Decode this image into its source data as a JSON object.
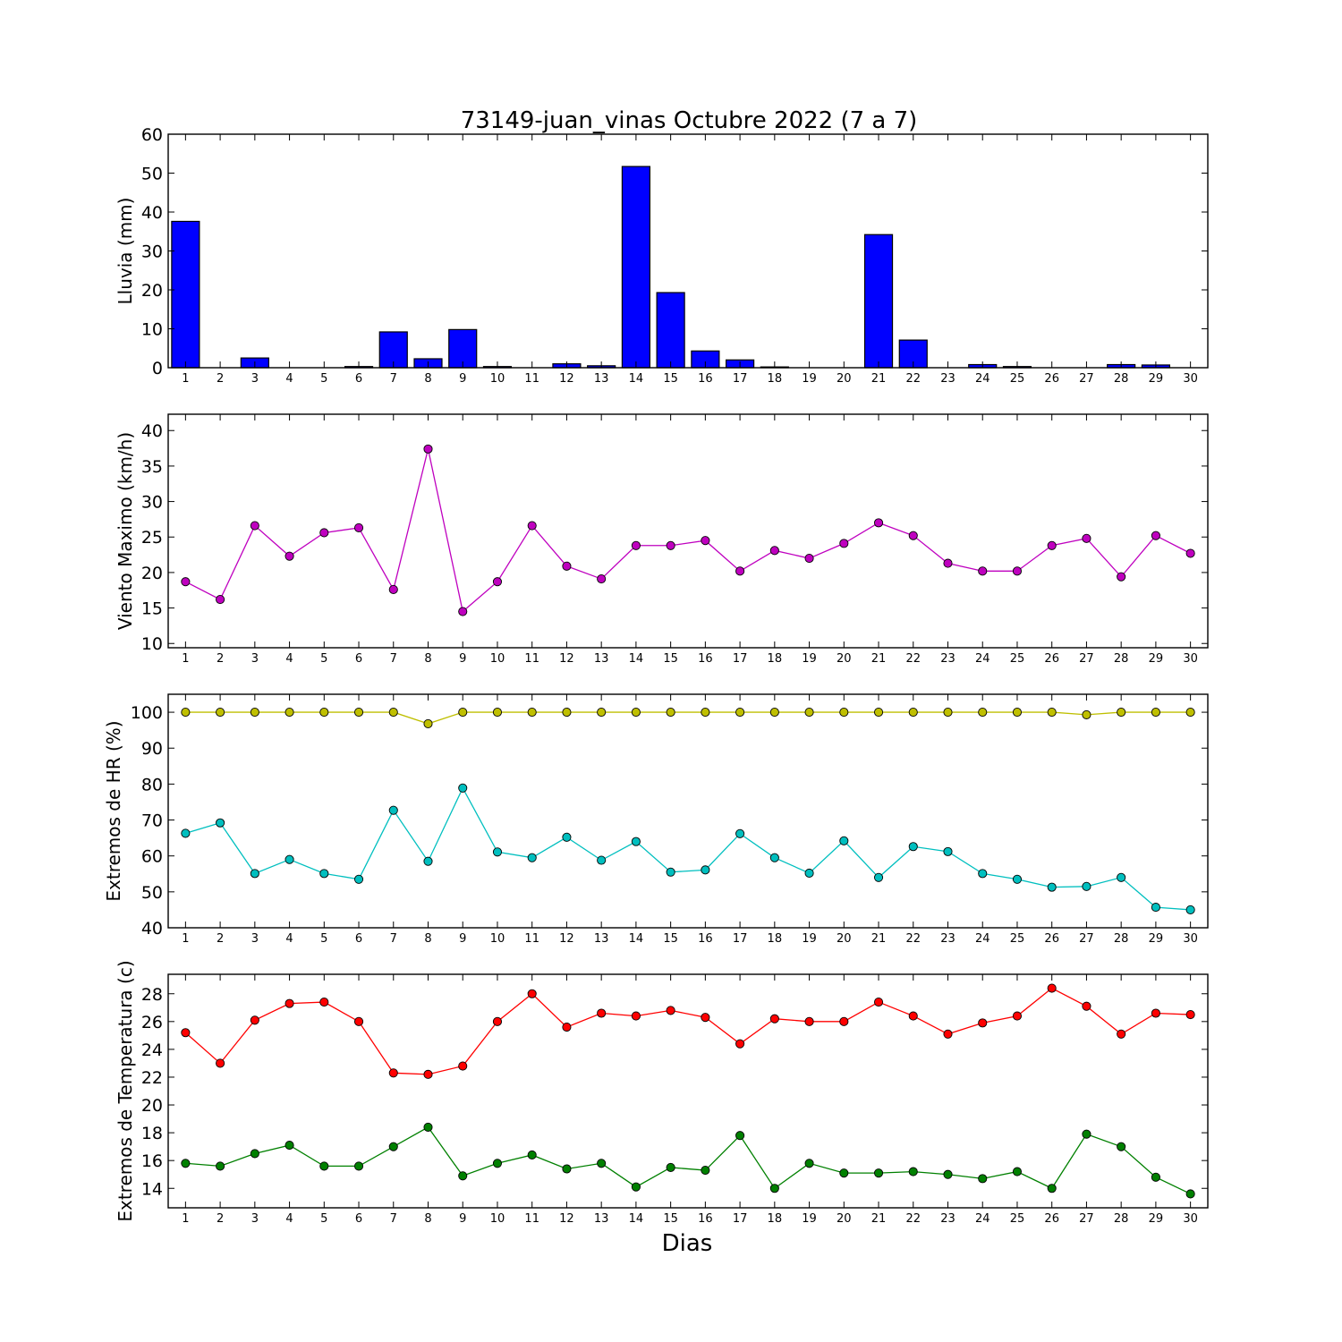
{
  "figure": {
    "title": "73149-juan_vinas Octubre 2022  (7 a 7)",
    "xlabel": "Dias"
  },
  "chart_data": [
    {
      "type": "bar",
      "ylabel": "Lluvia (mm)",
      "ylim": [
        0,
        60
      ],
      "yticks": [
        0,
        10,
        20,
        30,
        40,
        50,
        60
      ],
      "categories": [
        1,
        2,
        3,
        4,
        5,
        6,
        7,
        8,
        9,
        10,
        11,
        12,
        13,
        14,
        15,
        16,
        17,
        18,
        19,
        20,
        21,
        22,
        23,
        24,
        25,
        26,
        27,
        28,
        29,
        30
      ],
      "series": [
        {
          "color": "#0000ff",
          "values": [
            37.6,
            0,
            2.5,
            0,
            0,
            0.3,
            9.2,
            2.3,
            9.8,
            0.3,
            0,
            1.0,
            0.5,
            51.7,
            19.3,
            4.3,
            2.0,
            0.2,
            0,
            0,
            34.2,
            7.1,
            0,
            0.8,
            0.3,
            0,
            0,
            0.8,
            0.7,
            0
          ]
        }
      ]
    },
    {
      "type": "line",
      "ylabel": "Viento Maximo (km/h)",
      "ylim": [
        9.4,
        42.3
      ],
      "yticks": [
        10,
        15,
        20,
        25,
        30,
        35,
        40
      ],
      "x": [
        1,
        2,
        3,
        4,
        5,
        6,
        7,
        8,
        9,
        10,
        11,
        12,
        13,
        14,
        15,
        16,
        17,
        18,
        19,
        20,
        21,
        22,
        23,
        24,
        25,
        26,
        27,
        28,
        29,
        30
      ],
      "series": [
        {
          "color": "#bf00bf",
          "values": [
            18.7,
            16.2,
            26.6,
            22.3,
            25.6,
            26.3,
            17.6,
            37.4,
            14.5,
            18.7,
            26.6,
            20.9,
            19.1,
            23.8,
            23.8,
            24.5,
            20.2,
            23.1,
            22.0,
            24.1,
            27.0,
            25.2,
            21.3,
            20.2,
            20.2,
            23.8,
            24.8,
            19.4,
            25.2,
            22.7
          ]
        }
      ]
    },
    {
      "type": "line",
      "ylabel": "Extremos de HR (%)",
      "ylim": [
        40,
        105
      ],
      "yticks": [
        40,
        50,
        60,
        70,
        80,
        90,
        100
      ],
      "x": [
        1,
        2,
        3,
        4,
        5,
        6,
        7,
        8,
        9,
        10,
        11,
        12,
        13,
        14,
        15,
        16,
        17,
        18,
        19,
        20,
        21,
        22,
        23,
        24,
        25,
        26,
        27,
        28,
        29,
        30
      ],
      "series": [
        {
          "color": "#bfbf00",
          "values": [
            100,
            100,
            100,
            100,
            100,
            100,
            100,
            96.8,
            100,
            100,
            100,
            100,
            100,
            100,
            100,
            100,
            100,
            100,
            100,
            100,
            100,
            100,
            100,
            100,
            100,
            100,
            99.3,
            100,
            100,
            100
          ]
        },
        {
          "color": "#00bfbf",
          "values": [
            66.3,
            69.2,
            55.1,
            59.0,
            55.1,
            53.5,
            72.7,
            58.5,
            78.9,
            61.1,
            59.5,
            65.2,
            58.8,
            64.0,
            55.5,
            56.1,
            66.2,
            59.5,
            55.2,
            64.2,
            54.0,
            62.6,
            61.2,
            55.1,
            53.5,
            51.3,
            51.5,
            54.0,
            45.7,
            45.0
          ]
        }
      ]
    },
    {
      "type": "line",
      "ylabel": "Extremos de Temperatura (c)",
      "ylim": [
        12.6,
        29.4
      ],
      "yticks": [
        14,
        16,
        18,
        20,
        22,
        24,
        26,
        28
      ],
      "x": [
        1,
        2,
        3,
        4,
        5,
        6,
        7,
        8,
        9,
        10,
        11,
        12,
        13,
        14,
        15,
        16,
        17,
        18,
        19,
        20,
        21,
        22,
        23,
        24,
        25,
        26,
        27,
        28,
        29,
        30
      ],
      "series": [
        {
          "color": "#ff0000",
          "values": [
            25.2,
            23.0,
            26.1,
            27.3,
            27.4,
            26.0,
            22.3,
            22.2,
            22.8,
            26.0,
            28.0,
            25.6,
            26.6,
            26.4,
            26.8,
            26.3,
            24.4,
            26.2,
            26.0,
            26.0,
            27.4,
            26.4,
            25.1,
            25.9,
            26.4,
            28.4,
            27.1,
            25.1,
            26.6,
            26.5
          ]
        },
        {
          "color": "#008000",
          "values": [
            15.8,
            15.6,
            16.5,
            17.1,
            15.6,
            15.6,
            17.0,
            18.4,
            14.9,
            15.8,
            16.4,
            15.4,
            15.8,
            14.1,
            15.5,
            15.3,
            17.8,
            14.0,
            15.8,
            15.1,
            15.1,
            15.2,
            15.0,
            14.7,
            15.2,
            14.0,
            17.9,
            17.0,
            14.8,
            13.6
          ]
        }
      ]
    }
  ]
}
